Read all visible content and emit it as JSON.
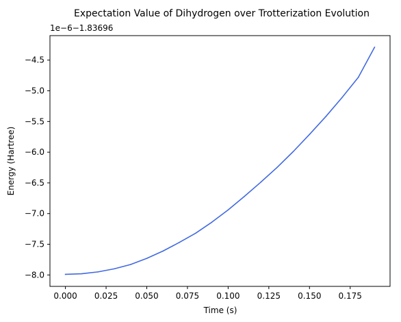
{
  "chart_data": {
    "type": "line",
    "title": "Expectation Value of Dihydrogen over Trotterization Evolution",
    "xlabel": "Time (s)",
    "ylabel": "Energy (Hartree)",
    "offset_text": "1e−6−1.83696",
    "xlim": [
      -0.0095,
      0.1995
    ],
    "ylim": [
      -8.186,
      -4.101
    ],
    "xticks": [
      0.0,
      0.025,
      0.05,
      0.075,
      0.1,
      0.125,
      0.15,
      0.175
    ],
    "xtick_labels": [
      "0.000",
      "0.025",
      "0.050",
      "0.075",
      "0.100",
      "0.125",
      "0.150",
      "0.175"
    ],
    "yticks": [
      -8.0,
      -7.5,
      -7.0,
      -6.5,
      -6.0,
      -5.5,
      -5.0,
      -4.5
    ],
    "ytick_labels": [
      "−8.0",
      "−7.5",
      "−7.0",
      "−6.5",
      "−6.0",
      "−5.5",
      "−5.0",
      "−4.5"
    ],
    "grid": false,
    "series": [
      {
        "color": "#4169e1",
        "x": [
          0.0,
          0.01,
          0.02,
          0.03,
          0.04,
          0.05,
          0.06,
          0.07,
          0.08,
          0.09,
          0.1,
          0.11,
          0.12,
          0.13,
          0.14,
          0.15,
          0.16,
          0.17,
          0.18,
          0.19
        ],
        "y": [
          -7.99,
          -7.98,
          -7.95,
          -7.9,
          -7.83,
          -7.73,
          -7.61,
          -7.47,
          -7.32,
          -7.14,
          -6.94,
          -6.72,
          -6.49,
          -6.25,
          -5.99,
          -5.71,
          -5.42,
          -5.11,
          -4.78,
          -4.29
        ]
      }
    ]
  }
}
